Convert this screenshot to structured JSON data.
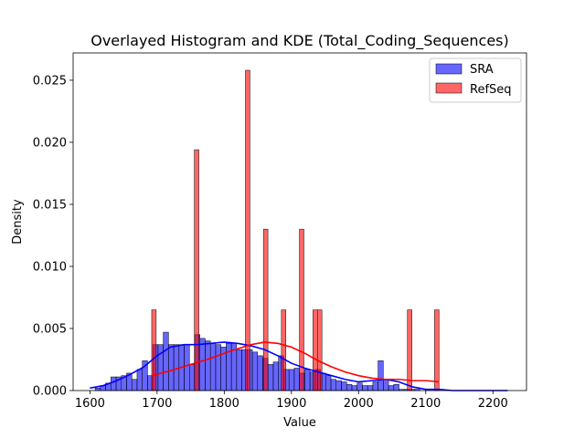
{
  "chart_data": {
    "type": "bar",
    "title": "Overlayed Histogram and KDE (Total_Coding_Sequences)",
    "xlabel": "Value",
    "ylabel": "Density",
    "xlim": [
      1575,
      2250
    ],
    "ylim": [
      0,
      0.0272
    ],
    "xticks": [
      1600,
      1700,
      1800,
      1900,
      2000,
      2100,
      2200
    ],
    "yticks": [
      0.0,
      0.005,
      0.01,
      0.015,
      0.02,
      0.025
    ],
    "ytick_labels": [
      "0.000",
      "0.005",
      "0.010",
      "0.015",
      "0.020",
      "0.025"
    ],
    "legend_position": "top-right",
    "grid": false,
    "series": [
      {
        "name": "SRA",
        "color": "#0000ff",
        "bin_width": 7.8,
        "bin_starts": [
          1600,
          1607.8,
          1615.6,
          1623.4,
          1631.2,
          1639,
          1646.8,
          1654.6,
          1662.4,
          1670.2,
          1678,
          1685.8,
          1693.6,
          1701.4,
          1709.2,
          1717,
          1724.8,
          1732.6,
          1740.4,
          1748.2,
          1756,
          1763.8,
          1771.6,
          1779.4,
          1787.2,
          1795,
          1802.8,
          1810.6,
          1818.4,
          1826.2,
          1834,
          1841.8,
          1849.6,
          1857.4,
          1865.2,
          1873,
          1880.8,
          1888.6,
          1896.4,
          1904.2,
          1912,
          1919.8,
          1927.6,
          1935.4,
          1943.2,
          1951,
          1958.8,
          1966.6,
          1974.4,
          1982.2,
          1990,
          1997.8,
          2005.6,
          2013.4,
          2021.2,
          2029,
          2036.8,
          2044.6,
          2052.4,
          2060.2,
          2068,
          2075.8,
          2083.6,
          2091.4,
          2099.2,
          2107,
          2114.8,
          2122.6,
          2130.4,
          2138.2,
          2146,
          2153.8,
          2161.6,
          2169.4,
          2177.2,
          2185,
          2192.8,
          2200.6,
          2208.4,
          2216.2
        ],
        "density": [
          0,
          0.0002,
          0.0004,
          0.0006,
          0.0011,
          0.0011,
          0.0012,
          0.0014,
          0.0009,
          0.0017,
          0.0024,
          0.0012,
          0.0037,
          0.0037,
          0.0047,
          0.0037,
          0.0037,
          0.0037,
          0.0037,
          0.0021,
          0.0045,
          0.0042,
          0.004,
          0.0038,
          0.0037,
          0.0035,
          0.0038,
          0.0038,
          0.0033,
          0.0033,
          0.0033,
          0.0031,
          0.0028,
          0.0026,
          0.0021,
          0.0023,
          0.0028,
          0.0017,
          0.0017,
          0.0018,
          0.0014,
          0.0017,
          0.0015,
          0.0017,
          0.0014,
          0.0012,
          0.0009,
          0.0008,
          0.0007,
          0.0005,
          0.0004,
          0.0006,
          0.0004,
          0.0004,
          0.0007,
          0.0024,
          0.0009,
          0.0004,
          0.0005,
          0.0001,
          0.0001,
          0.0001,
          0.0001,
          0,
          0,
          0,
          0,
          0,
          0,
          0,
          0,
          0,
          0,
          0,
          0,
          0,
          0,
          0,
          0,
          0
        ],
        "kde_x": [
          1600,
          1620,
          1640,
          1660,
          1680,
          1700,
          1720,
          1740,
          1760,
          1780,
          1800,
          1820,
          1840,
          1860,
          1880,
          1900,
          1920,
          1940,
          1960,
          1980,
          2000,
          2020,
          2040,
          2060,
          2080,
          2100,
          2120,
          2140,
          2160,
          2180,
          2200,
          2222
        ],
        "kde_y": [
          0.0002,
          0.0004,
          0.0008,
          0.0013,
          0.0019,
          0.0028,
          0.0035,
          0.0037,
          0.0037,
          0.0038,
          0.0039,
          0.0038,
          0.0036,
          0.0033,
          0.0028,
          0.0022,
          0.0018,
          0.0015,
          0.0012,
          0.0009,
          0.0007,
          0.0008,
          0.0009,
          0.0007,
          0.0003,
          0.0001,
          0.0001,
          0.0,
          0.0,
          0.0,
          0.0,
          0.0
        ]
      },
      {
        "name": "RefSeq",
        "color": "#ff0000",
        "bin_width": 6.7,
        "bin_starts": [
          1692,
          1755.5,
          1831.5,
          1858.3,
          1885.1,
          1911.9,
          1932,
          1938.7,
          2072.7,
          2113.1
        ],
        "density": [
          0.0065,
          0.0194,
          0.0258,
          0.013,
          0.0065,
          0.013,
          0.0065,
          0.0065,
          0.0065,
          0.0065
        ],
        "kde_x": [
          1692,
          1720,
          1750,
          1780,
          1810,
          1840,
          1860,
          1880,
          1900,
          1920,
          1940,
          1960,
          1980,
          2000,
          2020,
          2040,
          2060,
          2080,
          2100,
          2120
        ],
        "kde_y": [
          0.0012,
          0.0016,
          0.0021,
          0.0026,
          0.0032,
          0.0037,
          0.0039,
          0.0038,
          0.0035,
          0.003,
          0.0024,
          0.0019,
          0.0015,
          0.0012,
          0.001,
          0.0009,
          0.0009,
          0.0008,
          0.0008,
          0.0007
        ]
      }
    ]
  }
}
